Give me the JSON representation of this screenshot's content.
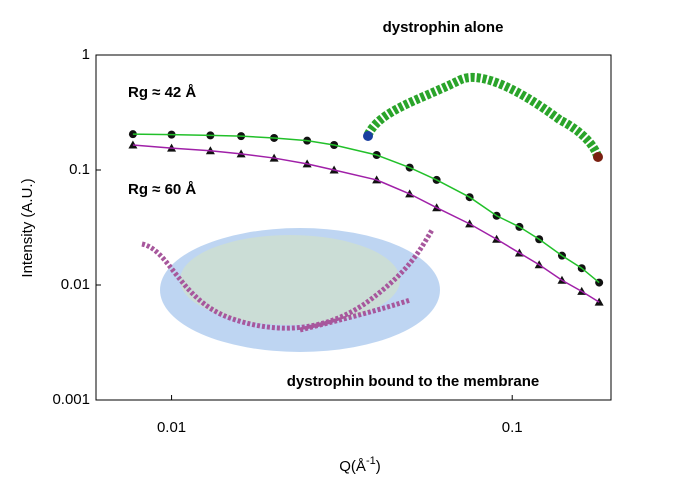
{
  "chart_data": {
    "type": "scatter",
    "x_label": [
      "Q(Å",
      "-1",
      ")"
    ],
    "y_label": "Intensity (A.U.)",
    "log_x": true,
    "log_y": true,
    "xlim": [
      0.006,
      0.195
    ],
    "ylim": [
      0.001,
      1
    ],
    "xticks": [
      0.01,
      0.1
    ],
    "yticks": [
      0.001,
      0.01,
      0.1,
      1
    ],
    "x": [
      0.0077,
      0.01,
      0.013,
      0.016,
      0.02,
      0.025,
      0.03,
      0.04,
      0.05,
      0.06,
      0.075,
      0.09,
      0.105,
      0.12,
      0.14,
      0.16,
      0.18
    ],
    "series": [
      {
        "name": "dystrophin alone",
        "marker": "circle",
        "color": "#111111",
        "line_color": "#22c02a",
        "label_color": "#2a9d3a",
        "values": [
          0.205,
          0.203,
          0.2,
          0.197,
          0.19,
          0.18,
          0.165,
          0.135,
          0.105,
          0.082,
          0.058,
          0.04,
          0.032,
          0.025,
          0.018,
          0.014,
          0.0105
        ]
      },
      {
        "name": "dystrophin bound to the membrane",
        "marker": "triangle",
        "color": "#111111",
        "line_color": "#a020a8",
        "label_color": "#7a1f86",
        "values": [
          0.165,
          0.155,
          0.147,
          0.138,
          0.127,
          0.113,
          0.1,
          0.082,
          0.062,
          0.047,
          0.034,
          0.025,
          0.019,
          0.015,
          0.011,
          0.0088,
          0.0071
        ]
      }
    ],
    "annotations": [
      {
        "text": "Rg ≈ 42 Å",
        "color": "#2a9d3a"
      },
      {
        "text": "Rg ≈ 60 Å",
        "color": "#7a3a96"
      }
    ]
  }
}
